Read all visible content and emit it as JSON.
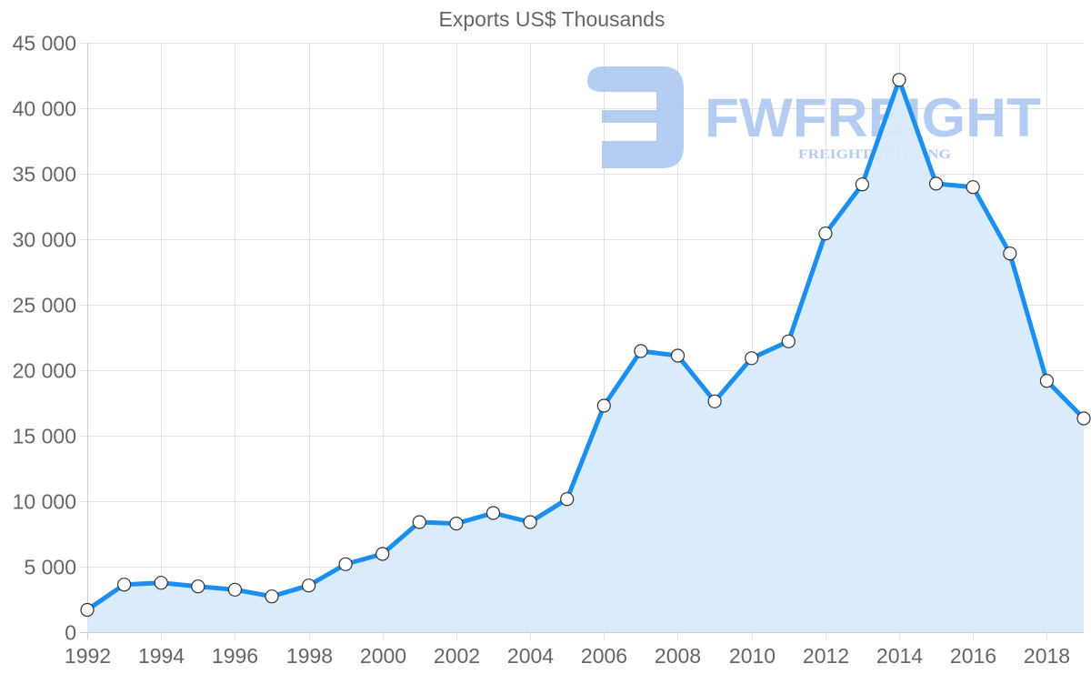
{
  "chart_data": {
    "type": "area",
    "title": "Exports US$ Thousands",
    "xlabel": "",
    "ylabel": "",
    "x": [
      1992,
      1993,
      1994,
      1995,
      1996,
      1997,
      1998,
      1999,
      2000,
      2001,
      2002,
      2003,
      2004,
      2005,
      2006,
      2007,
      2008,
      2009,
      2010,
      2011,
      2012,
      2013,
      2014,
      2015,
      2016,
      2017,
      2018,
      2019
    ],
    "series": [
      {
        "name": "Exports US$ Thousands",
        "values": [
          1700,
          3630,
          3770,
          3490,
          3240,
          2730,
          3560,
          5190,
          5970,
          8400,
          8290,
          9100,
          8400,
          10160,
          17290,
          21460,
          21110,
          17620,
          20920,
          22200,
          30440,
          34190,
          42170,
          34240,
          33980,
          28910,
          19190,
          16320
        ]
      }
    ],
    "ylim": [
      0,
      45000
    ],
    "xlim": [
      1992,
      2019
    ],
    "y_ticks": [
      "0",
      "5 000",
      "10 000",
      "15 000",
      "20 000",
      "25 000",
      "30 000",
      "35 000",
      "40 000",
      "45 000"
    ],
    "y_tick_values": [
      0,
      5000,
      10000,
      15000,
      20000,
      25000,
      30000,
      35000,
      40000,
      45000
    ],
    "x_ticks": [
      "1992",
      "1994",
      "1996",
      "1998",
      "2000",
      "2002",
      "2004",
      "2006",
      "2008",
      "2010",
      "2012",
      "2014",
      "2016",
      "2018"
    ],
    "x_tick_values": [
      1992,
      1994,
      1996,
      1998,
      2000,
      2002,
      2004,
      2006,
      2008,
      2010,
      2012,
      2014,
      2016,
      2018
    ],
    "grid": true,
    "legend": "none",
    "colors": {
      "line": "#1a8ff0",
      "fill": "#d8ebfc",
      "marker_fill": "#ffffff",
      "marker_stroke": "#333333",
      "grid": "#e3e3e3",
      "axis_text": "#666666"
    }
  },
  "watermark": {
    "brand": "FWFREIGHT",
    "tagline": "FREIGHT SHIPPING",
    "color": "#a9c4f0"
  }
}
